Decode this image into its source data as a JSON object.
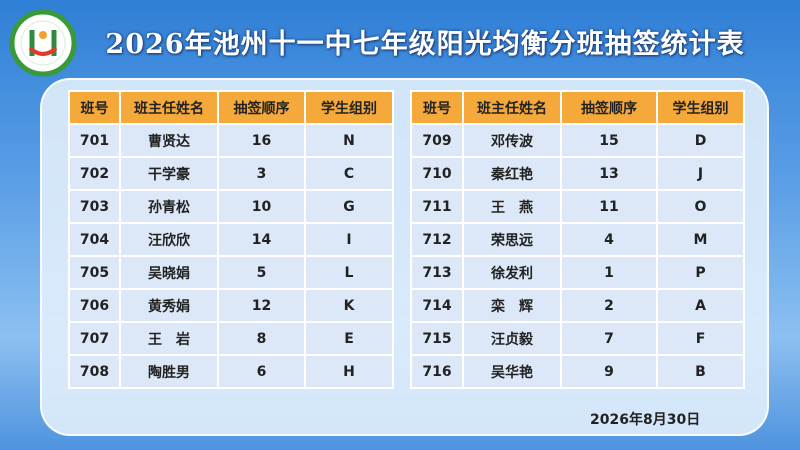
{
  "header": {
    "title": "2026年池州十一中七年级阳光均衡分班抽签统计表"
  },
  "tables": [
    {
      "columns": [
        "班号",
        "班主任姓名",
        "抽签顺序",
        "学生组别"
      ],
      "rows": [
        [
          "701",
          "曹贤达",
          "16",
          "N"
        ],
        [
          "702",
          "干学豪",
          "3",
          "C"
        ],
        [
          "703",
          "孙青松",
          "10",
          "G"
        ],
        [
          "704",
          "汪欣欣",
          "14",
          "I"
        ],
        [
          "705",
          "吴晓娟",
          "5",
          "L"
        ],
        [
          "706",
          "黄秀娟",
          "12",
          "K"
        ],
        [
          "707",
          "王　岩",
          "8",
          "E"
        ],
        [
          "708",
          "陶胜男",
          "6",
          "H"
        ]
      ]
    },
    {
      "columns": [
        "班号",
        "班主任姓名",
        "抽签顺序",
        "学生组别"
      ],
      "rows": [
        [
          "709",
          "邓传波",
          "15",
          "D"
        ],
        [
          "710",
          "秦红艳",
          "13",
          "J"
        ],
        [
          "711",
          "王　燕",
          "11",
          "O"
        ],
        [
          "712",
          "荣思远",
          "4",
          "M"
        ],
        [
          "713",
          "徐发利",
          "1",
          "P"
        ],
        [
          "714",
          "栾　辉",
          "2",
          "A"
        ],
        [
          "715",
          "汪贞毅",
          "7",
          "F"
        ],
        [
          "716",
          "吴华艳",
          "9",
          "B"
        ]
      ]
    }
  ],
  "footer": {
    "date": "2026年8月30日"
  }
}
